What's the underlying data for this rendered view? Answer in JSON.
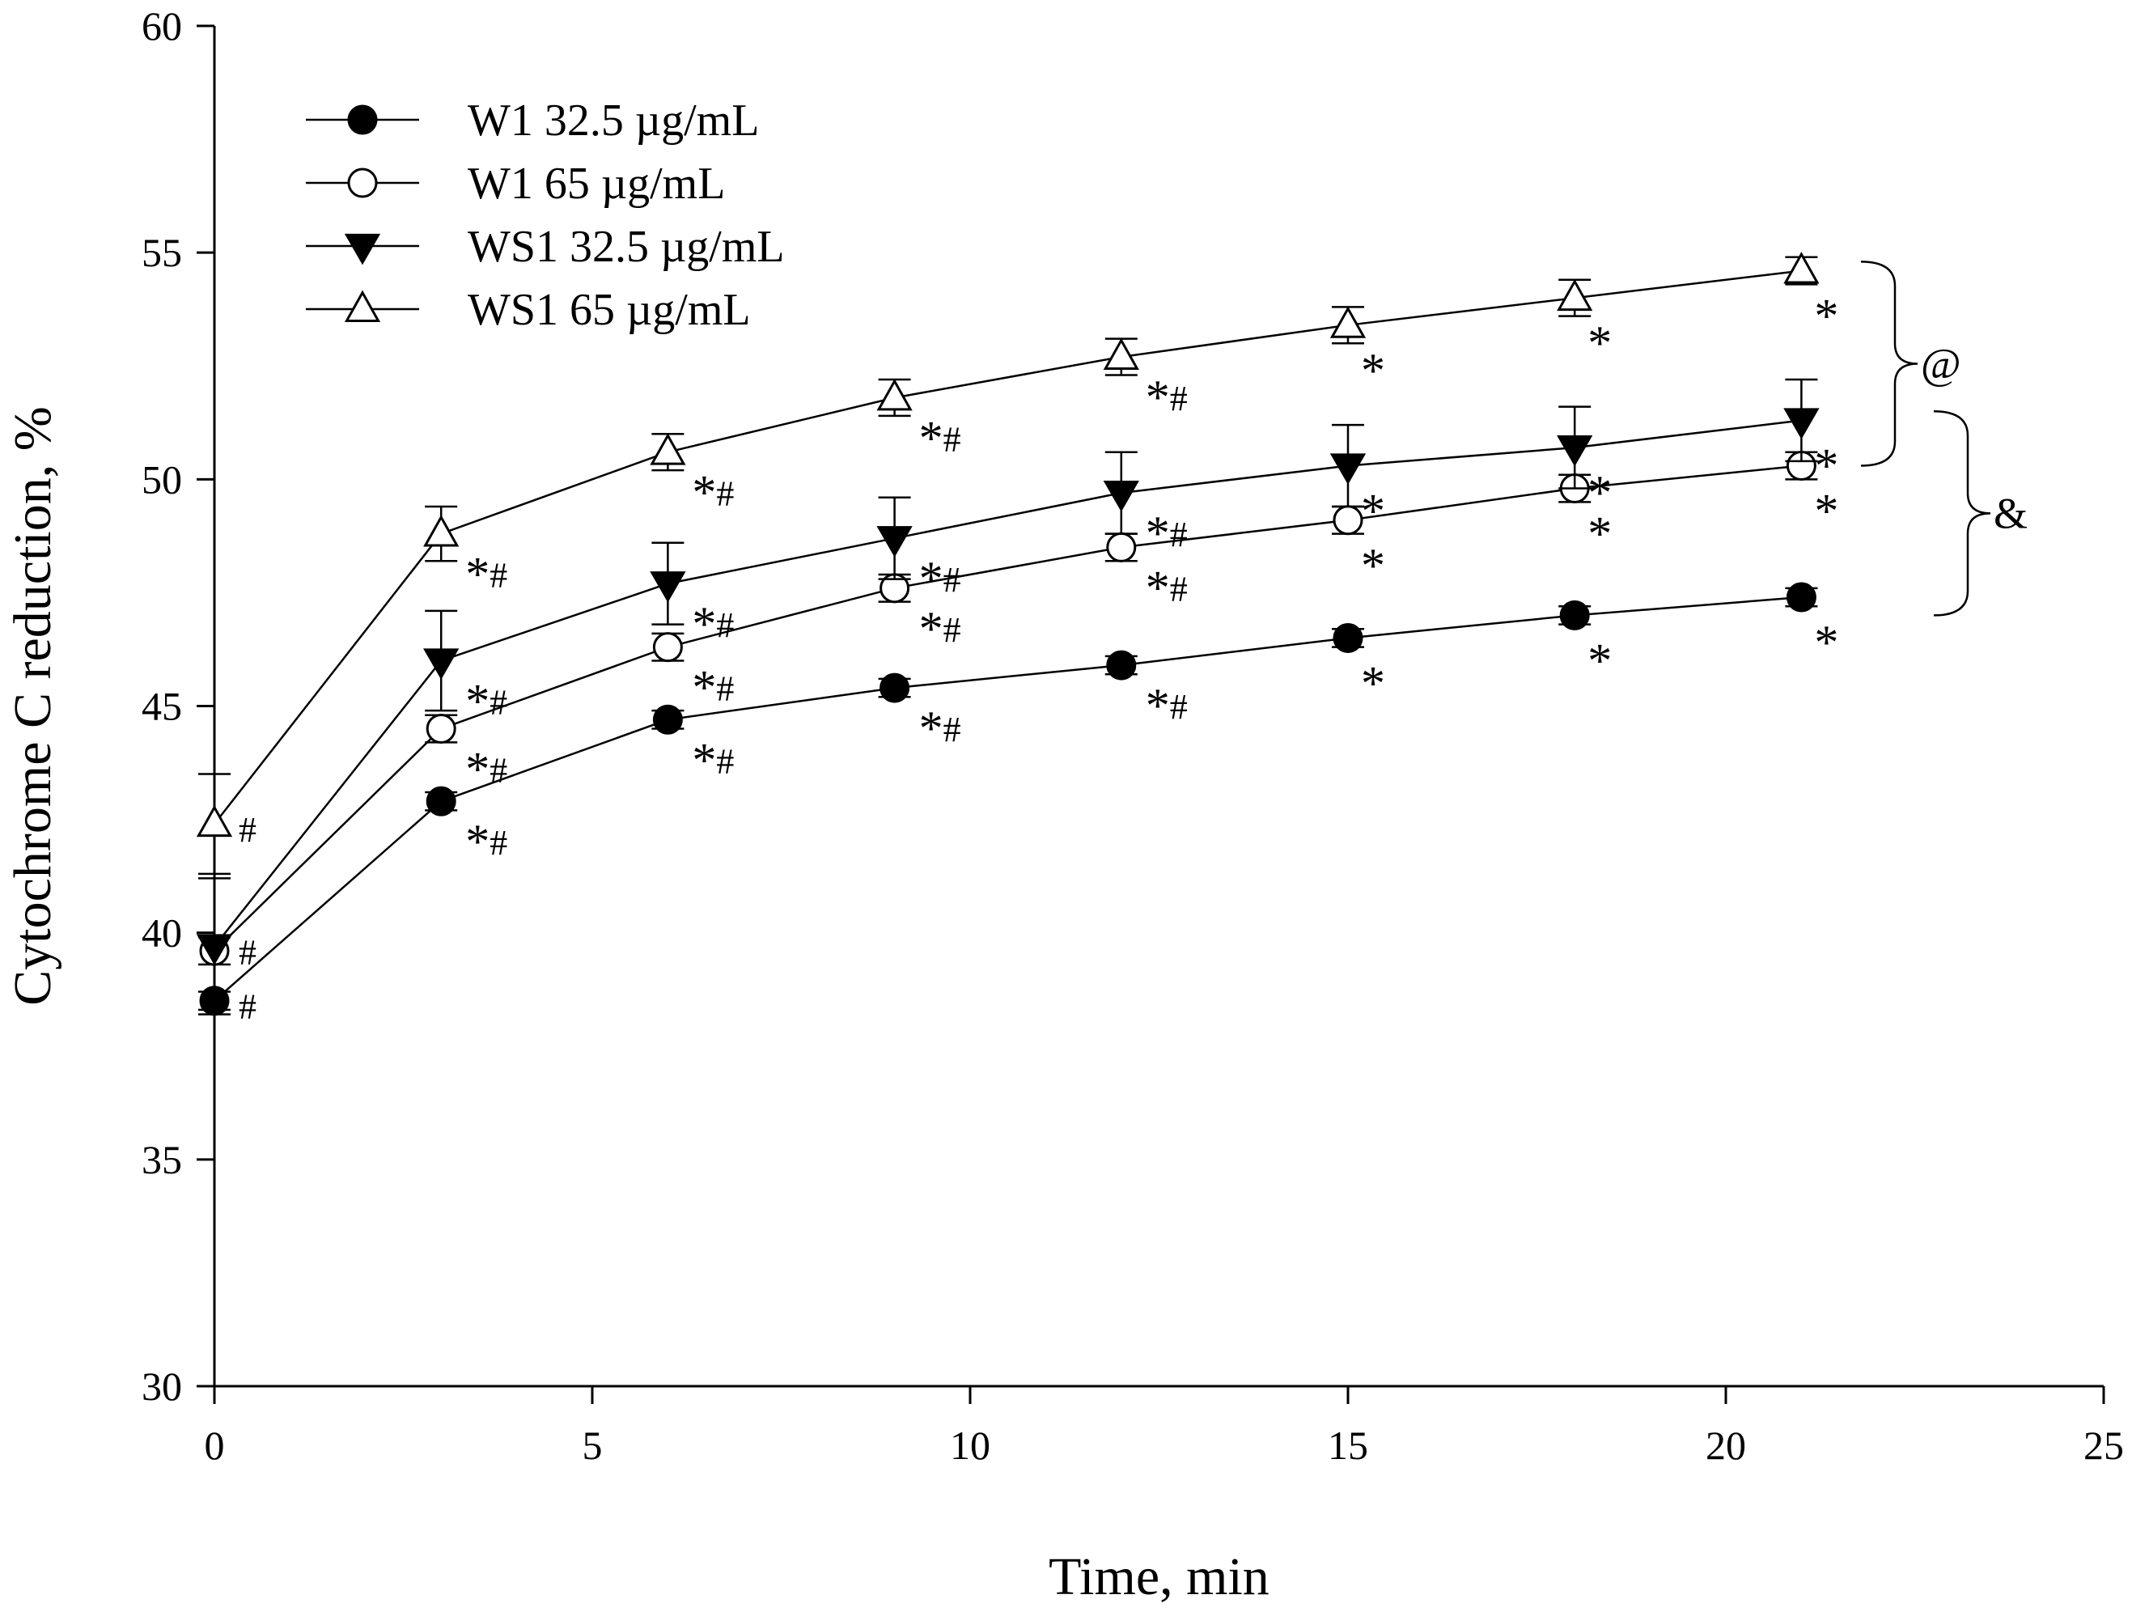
{
  "chart_data": {
    "type": "line",
    "title": "",
    "xlabel": "Time, min",
    "ylabel": "Cytochrome C reduction, %",
    "xlim": [
      0,
      25
    ],
    "ylim": [
      30,
      60
    ],
    "xticks": [
      0,
      5,
      10,
      15,
      20,
      25
    ],
    "yticks": [
      30,
      35,
      40,
      45,
      50,
      55,
      60
    ],
    "x": [
      0,
      3,
      6,
      9,
      12,
      15,
      18,
      21
    ],
    "grid": false,
    "legend_position": "top-left",
    "series": [
      {
        "name": "W1 32.5 µg/mL",
        "marker": "filled-circle",
        "values": [
          38.5,
          42.9,
          44.7,
          45.4,
          45.9,
          46.5,
          47.0,
          47.4
        ],
        "errors": [
          0.2,
          0.2,
          0.2,
          0.2,
          0.2,
          0.2,
          0.2,
          0.2
        ],
        "annotations": [
          "#",
          "*#",
          "*#",
          "*#",
          "*#",
          "*",
          "*",
          "*"
        ]
      },
      {
        "name": "W1 65 µg/mL",
        "marker": "open-circle",
        "values": [
          39.6,
          44.5,
          46.3,
          47.6,
          48.5,
          49.1,
          49.8,
          50.3
        ],
        "errors": [
          0.3,
          0.3,
          0.3,
          0.3,
          0.3,
          0.3,
          0.3,
          0.3
        ],
        "annotations": [
          "",
          "*#",
          "*#",
          "*#",
          "*#",
          "*",
          "*",
          "*"
        ]
      },
      {
        "name": "WS1 32.5 µg/mL",
        "marker": "filled-triangle-down",
        "values": [
          39.7,
          46.0,
          47.7,
          48.7,
          49.7,
          50.3,
          50.7,
          51.3
        ],
        "errors": [
          1.5,
          1.1,
          0.9,
          0.9,
          0.9,
          0.9,
          0.9,
          0.9
        ],
        "annotations": [
          "#",
          "*#",
          "*#",
          "*#",
          "*#",
          "*",
          "*",
          "*"
        ]
      },
      {
        "name": "WS1 65 µg/mL",
        "marker": "open-triangle-up",
        "values": [
          42.4,
          48.8,
          50.6,
          51.8,
          52.7,
          53.4,
          54.0,
          54.6
        ],
        "errors": [
          1.1,
          0.6,
          0.4,
          0.4,
          0.4,
          0.4,
          0.4,
          0.3
        ],
        "annotations": [
          "#",
          "*#",
          "*#",
          "*#",
          "*#",
          "*",
          "*",
          "*"
        ]
      }
    ],
    "brackets": [
      {
        "label": "@",
        "from_value": 54.8,
        "to_value": 50.3
      },
      {
        "label": "&",
        "from_value": 51.5,
        "to_value": 47.0
      }
    ]
  }
}
